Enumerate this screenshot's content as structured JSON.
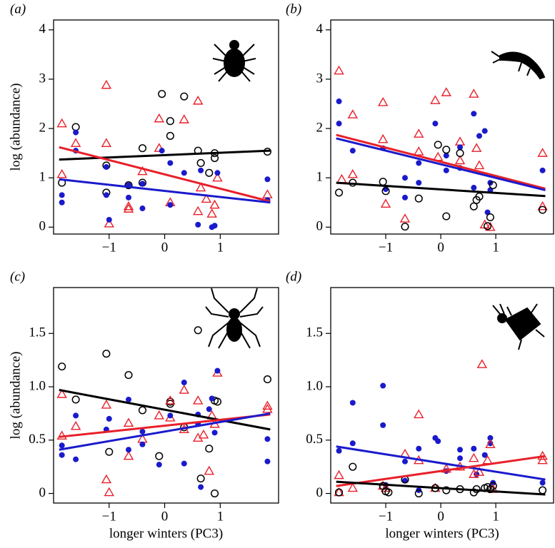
{
  "chart_data": [
    {
      "type": "scatter",
      "panel": "(a)",
      "ylabel": "log (abundance)",
      "xlim": [
        -2.0,
        2.05
      ],
      "ylim": [
        -0.14,
        4.2
      ],
      "xticks": [
        {
          "value": -1,
          "label": "−1"
        },
        0,
        1
      ],
      "yticks": [
        0,
        1,
        2,
        3,
        4
      ],
      "series": [
        {
          "mark": "circle",
          "color": "#000000",
          "x": [
            -1.85,
            -1.6,
            -1.05,
            -1.05,
            -0.65,
            -0.4,
            -0.05,
            0.1,
            0.1,
            0.35,
            0.6,
            0.65,
            0.9,
            0.9,
            1.85,
            -0.4,
            0.8
          ],
          "values": [
            0.9,
            2.03,
            1.25,
            0.7,
            0.85,
            1.6,
            2.7,
            1.85,
            2.15,
            2.65,
            1.55,
            1.3,
            1.4,
            1.5,
            1.53,
            0.9,
            1.1
          ]
        },
        {
          "mark": "triangle",
          "color": "#e8202a",
          "x": [
            -1.85,
            -1.85,
            -1.6,
            -1.05,
            -1.05,
            -1.0,
            -0.65,
            -0.65,
            -0.4,
            -0.1,
            -0.1,
            0.1,
            0.35,
            0.6,
            0.6,
            0.65,
            0.75,
            0.85,
            0.9,
            0.95,
            1.85
          ],
          "values": [
            2.1,
            1.07,
            1.7,
            2.88,
            1.7,
            0.07,
            0.42,
            0.37,
            1.13,
            2.2,
            1.6,
            0.5,
            2.18,
            2.56,
            0.32,
            0.8,
            0.57,
            0.27,
            0.45,
            1.0,
            0.66
          ]
        },
        {
          "mark": "dot",
          "color": "#1a1acc",
          "x": [
            -1.85,
            -1.85,
            -1.6,
            -1.6,
            -1.05,
            -1.05,
            -1.0,
            -0.65,
            -0.65,
            -0.4,
            -0.4,
            -0.05,
            0.1,
            0.1,
            0.35,
            0.6,
            0.65,
            0.85,
            0.9,
            0.95,
            1.85,
            1.85
          ],
          "values": [
            0.5,
            0.65,
            1.92,
            1.55,
            1.22,
            0.65,
            0.15,
            0.6,
            0.85,
            0.38,
            0.88,
            1.55,
            0.45,
            1.3,
            1.1,
            0.05,
            1.15,
            0,
            0.03,
            1.1,
            0.55,
            0.97
          ]
        },
        {
          "mark": "line",
          "color": "#000000",
          "x": [
            -1.9,
            1.9
          ],
          "values": [
            1.37,
            1.55
          ]
        },
        {
          "mark": "line",
          "color": "#e8202a",
          "x": [
            -1.9,
            1.9
          ],
          "values": [
            1.62,
            0.52
          ]
        },
        {
          "mark": "line",
          "color": "#1a1acc",
          "x": [
            -1.9,
            1.9
          ],
          "values": [
            0.97,
            0.5
          ]
        }
      ]
    },
    {
      "type": "scatter",
      "panel": "(b)",
      "xlim": [
        -2.0,
        2.05
      ],
      "ylim": [
        -0.14,
        4.2
      ],
      "xticks": [
        {
          "value": -1,
          "label": "−1"
        },
        0,
        1
      ],
      "yticks": [
        0,
        1,
        2,
        3,
        4
      ],
      "series": [
        {
          "mark": "triangle",
          "color": "#e8202a",
          "x": [
            -1.85,
            -1.8,
            -1.6,
            -1.6,
            -1.05,
            -1.05,
            -1.0,
            -0.65,
            -0.4,
            -0.4,
            -0.1,
            -0.05,
            0.1,
            0.35,
            0.35,
            0.6,
            0.65,
            0.7,
            0.8,
            0.9,
            1.85,
            1.85
          ],
          "values": [
            3.17,
            0.97,
            2.28,
            1.07,
            2.53,
            1.78,
            0.47,
            0.17,
            1.89,
            1.53,
            2.57,
            1.42,
            2.73,
            1.35,
            1.73,
            2.7,
            1.6,
            1.25,
            0.05,
            0,
            1.5,
            0.42
          ]
        },
        {
          "mark": "dot",
          "color": "#1a1acc",
          "x": [
            -1.85,
            -1.85,
            -1.6,
            -1.05,
            -1.0,
            -0.65,
            -0.4,
            -0.4,
            -0.1,
            0.1,
            0.1,
            0.35,
            0.35,
            0.6,
            0.6,
            0.7,
            0.8,
            0.85,
            0.9,
            1.85,
            -0.65,
            0.9
          ],
          "values": [
            2.55,
            2.1,
            1.55,
            1.6,
            0.77,
            0.6,
            0.9,
            1.3,
            2.1,
            1.15,
            1.45,
            1.62,
            1.2,
            2.3,
            0.8,
            1.85,
            1.95,
            0.3,
            0.9,
            1.15,
            1.0,
            0.75
          ]
        },
        {
          "mark": "circle",
          "color": "#000000",
          "x": [
            -1.85,
            -1.6,
            -1.05,
            -1.0,
            -0.65,
            -0.4,
            -0.05,
            0.1,
            0.1,
            0.35,
            0.6,
            0.65,
            0.7,
            0.85,
            0.9,
            0.95,
            1.85
          ],
          "values": [
            0.7,
            0.9,
            0.92,
            0.73,
            0.01,
            0.58,
            1.67,
            0.22,
            1.57,
            1.5,
            0.42,
            0.55,
            0.62,
            0.02,
            0.2,
            0.85,
            0.35
          ]
        },
        {
          "mark": "line",
          "color": "#e8202a",
          "x": [
            -1.9,
            1.9
          ],
          "values": [
            1.87,
            0.78
          ]
        },
        {
          "mark": "line",
          "color": "#1a1acc",
          "x": [
            -1.9,
            1.9
          ],
          "values": [
            1.8,
            0.75
          ]
        },
        {
          "mark": "line",
          "color": "#000000",
          "x": [
            -1.9,
            1.9
          ],
          "values": [
            0.9,
            0.63
          ]
        }
      ]
    },
    {
      "type": "scatter",
      "panel": "(c)",
      "ylabel": "log (abundance)",
      "xlabel": "longer winters (PC3)",
      "xlim": [
        -2.0,
        2.05
      ],
      "ylim": [
        -0.09,
        1.93
      ],
      "xticks": [
        {
          "value": -1,
          "label": "−1"
        },
        0,
        1
      ],
      "yticks": [
        0,
        0.5,
        {
          "value": 1,
          "label": "1.0"
        },
        1.5
      ],
      "series": [
        {
          "mark": "circle",
          "color": "#000000",
          "x": [
            -1.85,
            -1.6,
            -1.05,
            -1.0,
            -0.65,
            -0.4,
            -0.1,
            0.1,
            0.1,
            0.35,
            0.6,
            0.65,
            0.8,
            0.9,
            0.9,
            0.95,
            1.85
          ],
          "values": [
            1.19,
            0.88,
            1.31,
            0.39,
            1.11,
            0.78,
            0.35,
            0.84,
            0.86,
            0.62,
            1.53,
            0.14,
            0.42,
            0.87,
            0.0,
            0.86,
            1.07
          ]
        },
        {
          "mark": "triangle",
          "color": "#e8202a",
          "x": [
            -1.85,
            -1.85,
            -1.6,
            -1.05,
            -1.05,
            -1.0,
            -0.65,
            -0.65,
            -0.4,
            -0.1,
            0.1,
            0.1,
            0.35,
            0.35,
            0.6,
            0.6,
            0.7,
            0.8,
            0.85,
            0.9,
            0.95,
            1.85,
            1.85
          ],
          "values": [
            0.93,
            0.54,
            0.63,
            0.83,
            0.13,
            0.01,
            0.66,
            0.35,
            0.51,
            0.73,
            0.87,
            0.71,
            0.97,
            0.6,
            0.87,
            0.52,
            0.55,
            0.21,
            0.73,
            0.65,
            1.13,
            0.82,
            0.79
          ]
        },
        {
          "mark": "dot",
          "color": "#1a1acc",
          "x": [
            -1.85,
            -1.6,
            -1.6,
            -1.05,
            -1.0,
            -0.65,
            -0.65,
            -0.4,
            -0.4,
            -0.1,
            0.1,
            0.35,
            0.35,
            0.6,
            0.6,
            0.65,
            0.8,
            0.85,
            0.9,
            0.95,
            1.85,
            1.85,
            -1.85
          ],
          "values": [
            0.36,
            0.73,
            0.32,
            0.6,
            0.7,
            0.88,
            0.41,
            0.58,
            0.46,
            0.27,
            0.73,
            1.04,
            0.28,
            0.65,
            0.74,
            0.06,
            0.79,
            0.89,
            0.57,
            1.15,
            0.3,
            0.51,
            0.45
          ]
        },
        {
          "mark": "line",
          "color": "#000000",
          "x": [
            -1.9,
            1.9
          ],
          "values": [
            0.97,
            0.6
          ]
        },
        {
          "mark": "line",
          "color": "#e8202a",
          "x": [
            -1.9,
            1.9
          ],
          "values": [
            0.53,
            0.74
          ]
        },
        {
          "mark": "line",
          "color": "#1a1acc",
          "x": [
            -1.9,
            1.9
          ],
          "values": [
            0.41,
            0.75
          ]
        }
      ]
    },
    {
      "type": "scatter",
      "panel": "(d)",
      "xlabel": "longer winters (PC3)",
      "xlim": [
        -2.0,
        2.05
      ],
      "ylim": [
        -0.09,
        1.93
      ],
      "xticks": [
        {
          "value": -1,
          "label": "−1"
        },
        0,
        1
      ],
      "yticks": [
        0,
        0.5,
        {
          "value": 1,
          "label": "1.0"
        },
        1.5
      ],
      "series": [
        {
          "mark": "dot",
          "color": "#1a1acc",
          "x": [
            -1.85,
            -1.6,
            -1.6,
            -1.05,
            -1.05,
            -1.0,
            -0.65,
            -0.4,
            -0.4,
            -0.1,
            -0.05,
            0.1,
            0.35,
            0.35,
            0.6,
            0.65,
            0.8,
            0.9,
            0.9,
            0.95,
            1.85,
            -0.65
          ],
          "values": [
            0.4,
            0.85,
            0.47,
            1.01,
            0.64,
            0.08,
            0.3,
            0.42,
            0.03,
            0.52,
            0.49,
            0.21,
            0.41,
            0.33,
            0.42,
            0.18,
            0.36,
            0.52,
            0.47,
            0.1,
            0.1,
            0.12
          ]
        },
        {
          "mark": "triangle",
          "color": "#e8202a",
          "x": [
            -1.85,
            -1.85,
            -1.6,
            -1.05,
            -1.0,
            -0.65,
            -0.4,
            -0.4,
            -0.1,
            0.1,
            0.35,
            0.6,
            0.6,
            0.7,
            0.75,
            0.85,
            0.9,
            0.95,
            1.85,
            1.85
          ],
          "values": [
            0.17,
            0.01,
            0.05,
            0.07,
            0.05,
            0.37,
            0.74,
            0.31,
            0.05,
            0.23,
            0.25,
            0.33,
            0.18,
            0.2,
            1.21,
            0.31,
            0.46,
            0.04,
            0.35,
            0.31
          ]
        },
        {
          "mark": "circle",
          "color": "#000000",
          "x": [
            -1.85,
            -1.6,
            -1.05,
            -1.0,
            -0.65,
            -0.4,
            -0.1,
            0.1,
            0.35,
            0.6,
            0.65,
            0.8,
            0.85,
            0.9,
            0.95,
            1.85,
            -0.95
          ],
          "values": [
            0.01,
            0.25,
            0.07,
            0.02,
            0.13,
            0,
            0.05,
            0.03,
            0.04,
            0.01,
            0.04,
            0.05,
            0.06,
            0.04,
            0.07,
            0.03,
            0.01
          ]
        },
        {
          "mark": "line",
          "color": "#1a1acc",
          "x": [
            -1.9,
            1.9
          ],
          "values": [
            0.44,
            0.13
          ]
        },
        {
          "mark": "line",
          "color": "#e8202a",
          "x": [
            -1.9,
            1.9
          ],
          "values": [
            0.07,
            0.35
          ]
        },
        {
          "mark": "line",
          "color": "#000000",
          "x": [
            -1.9,
            1.9
          ],
          "values": [
            0.11,
            -0.01
          ]
        }
      ]
    }
  ]
}
